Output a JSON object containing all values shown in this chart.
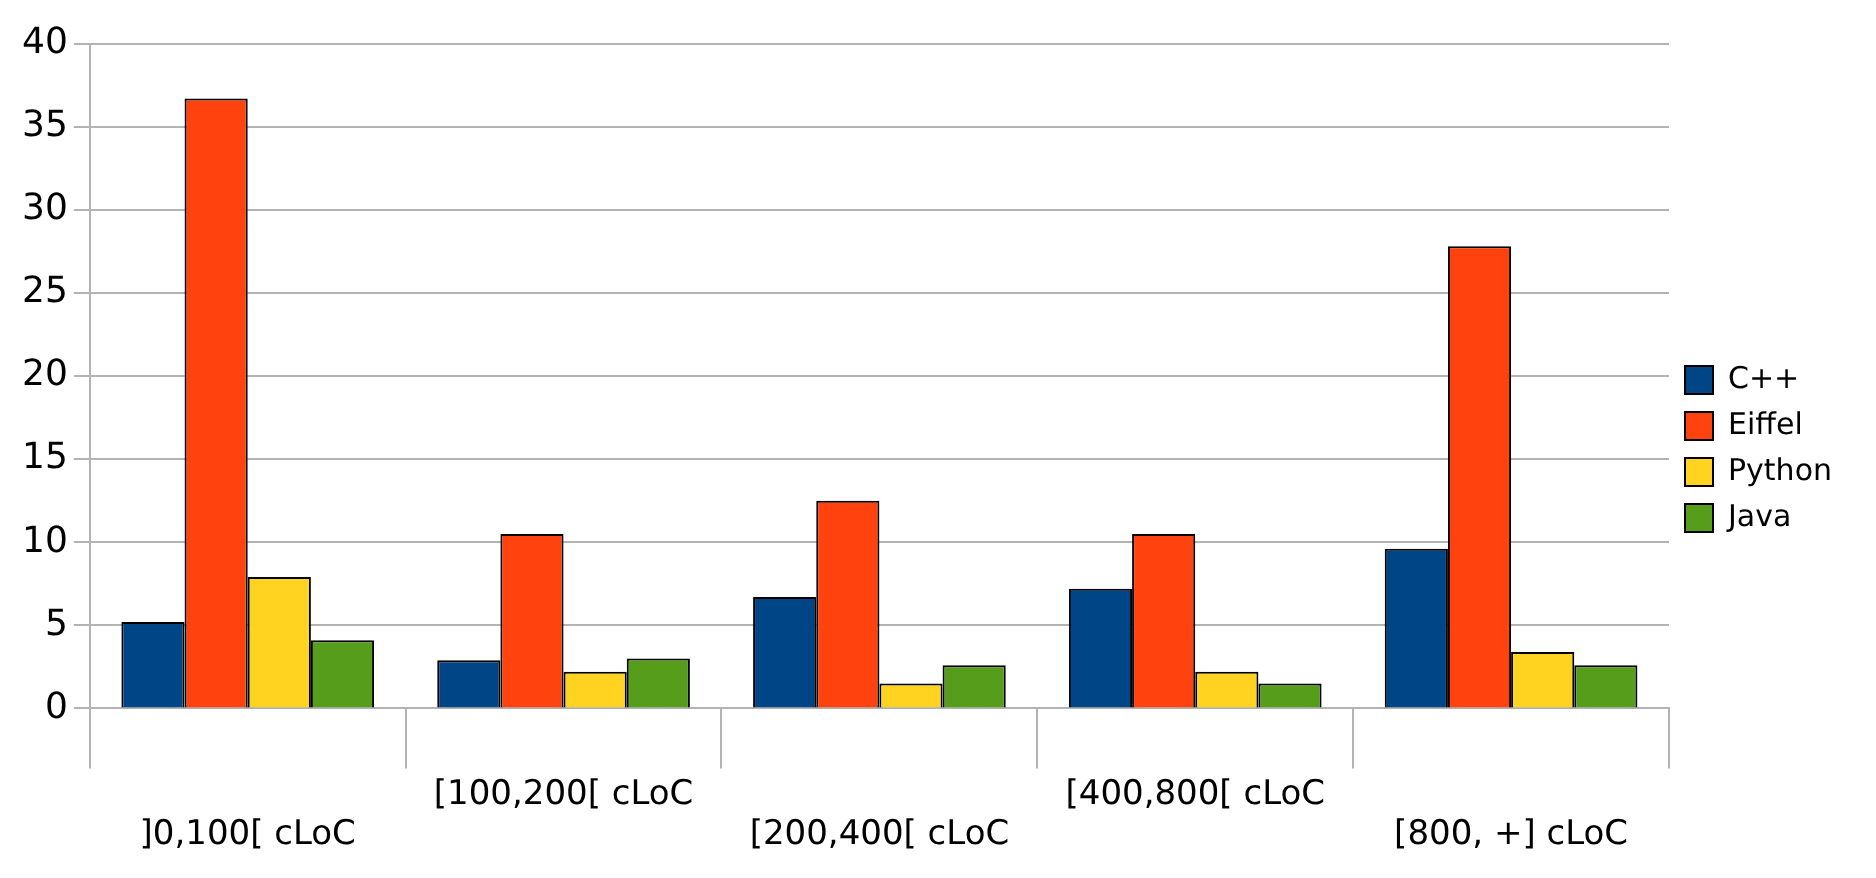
{
  "chart_data": {
    "type": "bar",
    "categories": [
      "]0,100[ cLoC",
      "[100,200[ cLoC",
      "[200,400[ cLoC",
      "[400,800[ cLoC",
      "[800, +] cLoC"
    ],
    "series": [
      {
        "name": "C++",
        "color": "#004586",
        "values": [
          5.2,
          2.9,
          6.7,
          7.2,
          9.6
        ]
      },
      {
        "name": "Eiffel",
        "color": "#ff420e",
        "values": [
          36.7,
          10.5,
          12.5,
          10.5,
          27.8
        ]
      },
      {
        "name": "Python",
        "color": "#ffd320",
        "values": [
          7.9,
          2.2,
          1.5,
          2.2,
          3.4
        ]
      },
      {
        "name": "Java",
        "color": "#579d1c",
        "values": [
          4.1,
          3.0,
          2.6,
          1.5,
          2.6
        ]
      }
    ],
    "ylim": [
      0,
      40
    ],
    "yticks": [
      0,
      5,
      10,
      15,
      20,
      25,
      30,
      35,
      40
    ],
    "grid": "y",
    "legend": "right"
  }
}
